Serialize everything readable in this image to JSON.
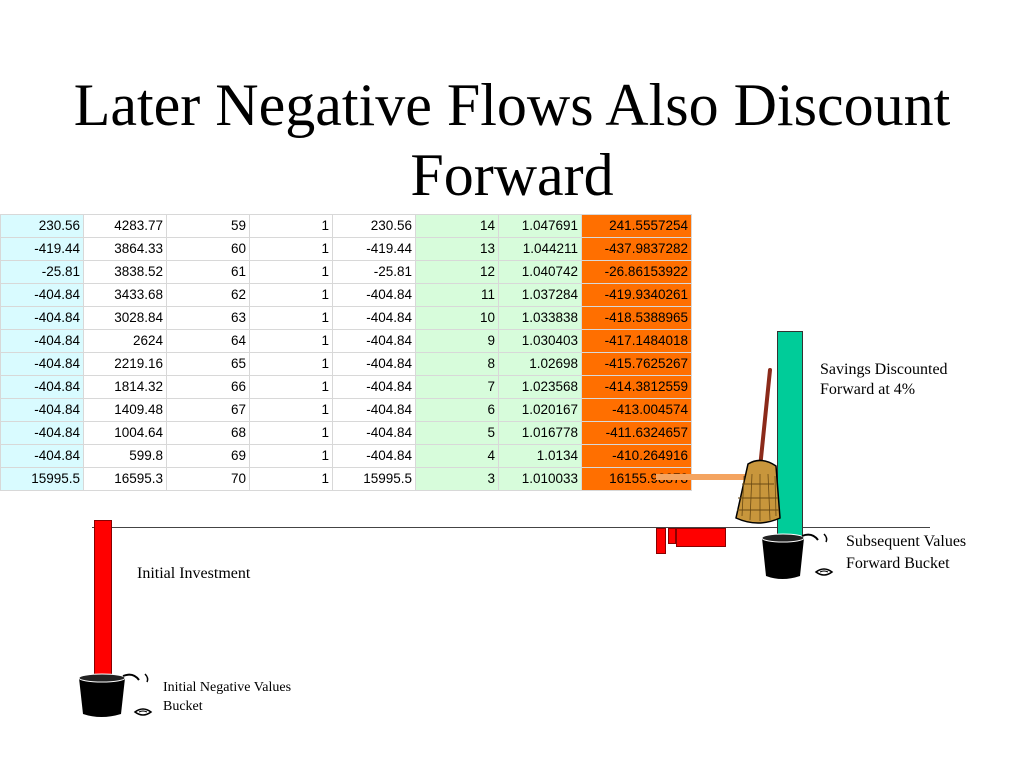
{
  "slide": {
    "title": "Later Negative Flows Also Discount Forward"
  },
  "table": {
    "rows": [
      [
        "230.56",
        "4283.77",
        "59",
        "1",
        "230.56",
        "14",
        "1.047691",
        "241.5557254"
      ],
      [
        "-419.44",
        "3864.33",
        "60",
        "1",
        "-419.44",
        "13",
        "1.044211",
        "-437.9837282"
      ],
      [
        "-25.81",
        "3838.52",
        "61",
        "1",
        "-25.81",
        "12",
        "1.040742",
        "-26.86153922"
      ],
      [
        "-404.84",
        "3433.68",
        "62",
        "1",
        "-404.84",
        "11",
        "1.037284",
        "-419.9340261"
      ],
      [
        "-404.84",
        "3028.84",
        "63",
        "1",
        "-404.84",
        "10",
        "1.033838",
        "-418.5388965"
      ],
      [
        "-404.84",
        "2624",
        "64",
        "1",
        "-404.84",
        "9",
        "1.030403",
        "-417.1484018"
      ],
      [
        "-404.84",
        "2219.16",
        "65",
        "1",
        "-404.84",
        "8",
        "1.02698",
        "-415.7625267"
      ],
      [
        "-404.84",
        "1814.32",
        "66",
        "1",
        "-404.84",
        "7",
        "1.023568",
        "-414.3812559"
      ],
      [
        "-404.84",
        "1409.48",
        "67",
        "1",
        "-404.84",
        "6",
        "1.020167",
        "-413.004574"
      ],
      [
        "-404.84",
        "1004.64",
        "68",
        "1",
        "-404.84",
        "5",
        "1.016778",
        "-411.6324657"
      ],
      [
        "-404.84",
        "599.8",
        "69",
        "1",
        "-404.84",
        "4",
        "1.0134",
        "-410.264916"
      ],
      [
        "15995.5",
        "16595.3",
        "70",
        "1",
        "15995.5",
        "3",
        "1.010033",
        "16155.98878"
      ]
    ]
  },
  "labels": {
    "savings_line1": "Savings Discounted",
    "savings_line2": "Forward at 4%",
    "subsequent_line1": "Subsequent Values",
    "subsequent_line2": "Forward Bucket",
    "initial_investment": "Initial Investment",
    "initial_bucket_line1": "Initial Negative Values",
    "initial_bucket_line2": "Bucket"
  },
  "colors": {
    "col_first": "#d9fbff",
    "col_factor": "#d7fcdb",
    "col_result": "#ff6f00",
    "negative_bar": "#ff0000",
    "savings_bar": "#00cc99",
    "arrow": "#f4a460"
  },
  "icons": [
    "broom-icon",
    "bucket-icon"
  ]
}
